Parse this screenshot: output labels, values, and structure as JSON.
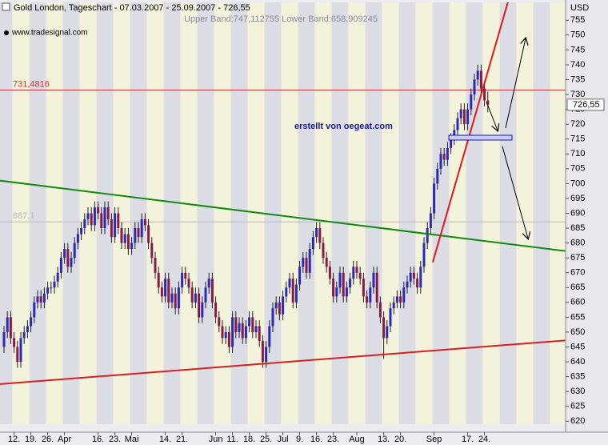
{
  "chart_data": {
    "type": "candlestick",
    "title": "Gold London, Tageschart - 07.03.2007 - 25.09.2007 - 726,55",
    "subtitle": "Upper Band:747,112755 Lower Band:658,909245",
    "source": "www.tradesignal.com",
    "annotation": "erstellt von oegeat.com",
    "y_axis_label": "USD",
    "last_value": {
      "value": 726.55,
      "label": "726,55"
    },
    "up_color": "#2a2ab8",
    "down_color": "#8a1a44",
    "ylim": [
      619,
      761
    ],
    "yticks": [
      620,
      625,
      630,
      635,
      640,
      645,
      650,
      655,
      660,
      665,
      670,
      675,
      680,
      685,
      690,
      695,
      700,
      705,
      710,
      715,
      720,
      725,
      730,
      735,
      740,
      745,
      750,
      755
    ],
    "categories": [
      null,
      null,
      null,
      "12.",
      null,
      null,
      null,
      null,
      "19.",
      null,
      null,
      null,
      null,
      "26.",
      null,
      null,
      null,
      null,
      "Apr",
      null,
      null,
      null,
      null,
      null,
      null,
      null,
      null,
      null,
      "16.",
      null,
      null,
      null,
      null,
      "23.",
      null,
      null,
      null,
      null,
      "Mai",
      null,
      null,
      null,
      null,
      null,
      null,
      null,
      null,
      null,
      "14.",
      null,
      null,
      null,
      null,
      "21.",
      null,
      null,
      null,
      null,
      null,
      null,
      null,
      null,
      null,
      "Jun",
      null,
      null,
      null,
      null,
      "11.",
      null,
      null,
      null,
      null,
      "18.",
      null,
      null,
      null,
      null,
      "25.",
      null,
      null,
      null,
      null,
      "Jul",
      null,
      null,
      null,
      null,
      "9.",
      null,
      null,
      null,
      null,
      "16.",
      null,
      null,
      null,
      null,
      "23.",
      null,
      null,
      null,
      null,
      null,
      null,
      "Aug",
      null,
      null,
      null,
      null,
      null,
      null,
      null,
      "13.",
      null,
      null,
      null,
      null,
      "20.",
      null,
      null,
      null,
      null,
      null,
      null,
      null,
      null,
      null,
      "Sep",
      null,
      null,
      null,
      null,
      null,
      null,
      null,
      null,
      null,
      "17.",
      null,
      null,
      null,
      null,
      "24.",
      null
    ],
    "open": [
      645,
      650,
      655,
      648,
      645,
      640,
      648,
      650,
      652,
      655,
      660,
      662,
      660,
      663,
      665,
      665,
      667,
      670,
      675,
      678,
      672,
      675,
      680,
      683,
      685,
      688,
      690,
      686,
      692,
      690,
      685,
      692,
      688,
      682,
      690,
      685,
      680,
      683,
      678,
      680,
      685,
      682,
      688,
      686,
      680,
      675,
      670,
      665,
      662,
      668,
      660,
      663,
      658,
      665,
      670,
      668,
      665,
      660,
      663,
      655,
      660,
      665,
      668,
      660,
      655,
      652,
      648,
      650,
      645,
      655,
      650,
      653,
      648,
      652,
      655,
      650,
      652,
      647,
      640,
      645,
      652,
      658,
      660,
      656,
      662,
      665,
      668,
      660,
      666,
      672,
      675,
      670,
      678,
      682,
      685,
      680,
      675,
      672,
      668,
      662,
      665,
      670,
      662,
      665,
      668,
      672,
      670,
      668,
      662,
      660,
      665,
      670,
      660,
      655,
      648,
      652,
      658,
      660,
      662,
      660,
      665,
      667,
      670,
      668,
      665,
      672,
      680,
      685,
      690,
      700,
      705,
      710,
      708,
      712,
      715,
      718,
      722,
      725,
      720,
      725,
      730,
      735,
      738,
      732,
      728
    ],
    "high": [
      652,
      657,
      657,
      650,
      647,
      650,
      652,
      654,
      657,
      662,
      664,
      664,
      665,
      667,
      667,
      669,
      672,
      677,
      680,
      680,
      677,
      682,
      685,
      687,
      690,
      692,
      692,
      694,
      694,
      692,
      694,
      694,
      690,
      692,
      692,
      687,
      685,
      685,
      682,
      687,
      687,
      690,
      690,
      688,
      682,
      677,
      672,
      667,
      670,
      670,
      665,
      665,
      667,
      672,
      672,
      670,
      667,
      665,
      665,
      662,
      667,
      670,
      670,
      662,
      657,
      654,
      652,
      652,
      657,
      657,
      655,
      655,
      654,
      657,
      657,
      654,
      654,
      649,
      647,
      654,
      660,
      662,
      662,
      664,
      667,
      670,
      670,
      668,
      674,
      677,
      677,
      680,
      684,
      687,
      687,
      682,
      677,
      674,
      670,
      667,
      672,
      672,
      667,
      670,
      674,
      674,
      672,
      670,
      664,
      667,
      672,
      672,
      662,
      657,
      654,
      660,
      662,
      664,
      664,
      667,
      669,
      672,
      672,
      670,
      674,
      682,
      687,
      692,
      702,
      707,
      712,
      712,
      714,
      717,
      720,
      724,
      727,
      727,
      727,
      732,
      737,
      740,
      740,
      734,
      731
    ],
    "low": [
      643,
      648,
      646,
      643,
      638,
      638,
      646,
      648,
      650,
      653,
      658,
      658,
      658,
      661,
      663,
      663,
      665,
      668,
      673,
      670,
      670,
      673,
      678,
      681,
      683,
      686,
      684,
      684,
      688,
      683,
      683,
      686,
      680,
      680,
      683,
      678,
      678,
      676,
      676,
      678,
      680,
      680,
      684,
      678,
      673,
      668,
      663,
      660,
      660,
      658,
      658,
      656,
      656,
      663,
      666,
      663,
      658,
      658,
      653,
      653,
      658,
      663,
      658,
      653,
      650,
      646,
      646,
      643,
      643,
      648,
      648,
      646,
      646,
      650,
      648,
      648,
      645,
      638,
      638,
      643,
      650,
      656,
      654,
      654,
      660,
      663,
      658,
      658,
      664,
      670,
      668,
      668,
      676,
      680,
      678,
      673,
      670,
      666,
      660,
      660,
      663,
      660,
      660,
      663,
      666,
      668,
      666,
      660,
      658,
      658,
      663,
      658,
      653,
      641,
      646,
      650,
      656,
      658,
      658,
      658,
      663,
      665,
      666,
      663,
      663,
      670,
      678,
      683,
      688,
      698,
      703,
      706,
      706,
      710,
      713,
      716,
      720,
      718,
      718,
      723,
      728,
      733,
      730,
      726,
      724
    ],
    "close": [
      650,
      655,
      648,
      645,
      640,
      648,
      650,
      652,
      655,
      660,
      662,
      660,
      663,
      665,
      665,
      667,
      670,
      675,
      678,
      672,
      675,
      680,
      683,
      685,
      688,
      690,
      686,
      692,
      690,
      685,
      692,
      688,
      682,
      690,
      685,
      680,
      683,
      678,
      680,
      685,
      682,
      688,
      686,
      680,
      675,
      670,
      665,
      662,
      668,
      660,
      663,
      658,
      665,
      670,
      668,
      665,
      660,
      663,
      655,
      660,
      665,
      668,
      660,
      655,
      652,
      648,
      650,
      645,
      655,
      650,
      653,
      648,
      652,
      655,
      650,
      652,
      647,
      640,
      645,
      652,
      658,
      660,
      656,
      662,
      665,
      668,
      660,
      666,
      672,
      675,
      670,
      678,
      682,
      685,
      680,
      675,
      672,
      668,
      662,
      665,
      670,
      662,
      665,
      668,
      672,
      670,
      668,
      662,
      660,
      665,
      670,
      660,
      655,
      648,
      652,
      658,
      660,
      662,
      660,
      665,
      667,
      670,
      668,
      665,
      672,
      680,
      685,
      690,
      700,
      705,
      710,
      708,
      712,
      715,
      718,
      722,
      725,
      720,
      725,
      730,
      735,
      738,
      732,
      728,
      726.55
    ],
    "trend_lines": [
      {
        "color": "#128a12",
        "x": [
          -1.2,
          167
        ],
        "y": [
          701,
          677.3
        ]
      },
      {
        "color": "#d42020",
        "x": [
          -1.2,
          167
        ],
        "y": [
          632.5,
          647.2
        ]
      },
      {
        "color": "#e01818",
        "x": [
          127.6,
          150.2
        ],
        "y": [
          673.5,
          762
        ]
      }
    ],
    "horizontal_lines": [
      {
        "value": 731.4816,
        "label": "731,4816",
        "color": "#cc3333"
      },
      {
        "value": 687.1,
        "label": "687,1",
        "color": "#b8b8b8"
      }
    ]
  }
}
